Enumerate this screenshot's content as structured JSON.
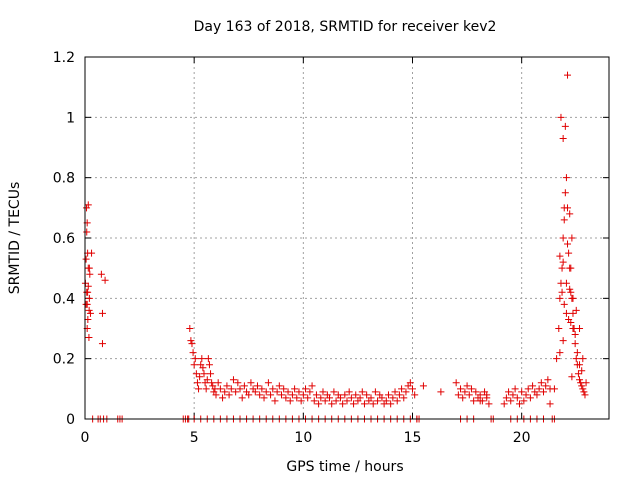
{
  "chart_data": {
    "type": "scatter",
    "title": "Day 163 of 2018, SRMTID for receiver kev2",
    "xlabel": "GPS time / hours",
    "ylabel": "SRMTID / TECUs",
    "xlim": [
      0,
      24
    ],
    "ylim": [
      0,
      1.2
    ],
    "x_ticks": [
      0,
      5,
      10,
      15,
      20
    ],
    "y_ticks": [
      0,
      0.2,
      0.4,
      0.6,
      0.8,
      1,
      1.2
    ],
    "x_tick_labels": [
      "0",
      "5",
      "10",
      "15",
      "20"
    ],
    "y_tick_labels": [
      "0",
      "0.2",
      "0.4",
      "0.6",
      "0.8",
      "1",
      "1.2"
    ],
    "grid": true,
    "marker": "+",
    "series": [
      {
        "name": "kev2",
        "color": "#e00000",
        "x": [
          0.02,
          0.05,
          0.08,
          0.1,
          0.12,
          0.15,
          0.05,
          0.08,
          0.1,
          0.13,
          0.18,
          0.2,
          0.22,
          0.07,
          0.15,
          0.19,
          0.25,
          0.3,
          0.75,
          0.8,
          0.92,
          0.8,
          0.12,
          0.15,
          0.2,
          0.1,
          0.35,
          0.6,
          0.7,
          0.85,
          1.0,
          1.5,
          1.6,
          1.7,
          4.5,
          4.6,
          4.7,
          4.75,
          4.8,
          4.85,
          4.9,
          4.95,
          5.0,
          5.05,
          5.1,
          5.15,
          5.2,
          5.25,
          5.3,
          5.35,
          5.4,
          5.45,
          5.5,
          5.55,
          5.6,
          5.65,
          5.7,
          5.75,
          5.8,
          5.85,
          5.9,
          5.95,
          6.0,
          6.1,
          6.2,
          6.3,
          6.4,
          6.5,
          6.6,
          6.7,
          6.8,
          6.9,
          7.0,
          7.1,
          7.2,
          7.3,
          7.4,
          7.5,
          7.6,
          7.7,
          7.8,
          7.9,
          8.0,
          8.1,
          8.2,
          8.3,
          8.4,
          8.5,
          8.6,
          8.7,
          8.8,
          8.9,
          9.0,
          9.1,
          9.2,
          9.3,
          9.4,
          9.5,
          9.6,
          9.7,
          9.8,
          9.9,
          10.0,
          10.1,
          10.2,
          10.3,
          10.4,
          10.5,
          10.6,
          10.7,
          10.8,
          10.9,
          11.0,
          11.1,
          11.2,
          11.3,
          11.4,
          11.5,
          11.6,
          11.7,
          11.8,
          11.9,
          12.0,
          12.1,
          12.2,
          12.3,
          12.4,
          12.5,
          12.6,
          12.7,
          12.8,
          12.9,
          13.0,
          13.1,
          13.2,
          13.3,
          13.4,
          13.5,
          13.6,
          13.7,
          13.8,
          13.9,
          14.0,
          14.1,
          14.2,
          14.3,
          14.4,
          14.5,
          14.6,
          14.7,
          14.8,
          14.9,
          15.0,
          15.1,
          15.2,
          15.3,
          5.0,
          5.3,
          5.6,
          5.9,
          6.2,
          6.5,
          6.8,
          7.1,
          7.4,
          7.7,
          8.0,
          8.3,
          8.6,
          8.9,
          9.2,
          9.5,
          9.8,
          10.1,
          10.4,
          10.7,
          11.0,
          11.3,
          11.6,
          11.9,
          12.2,
          12.5,
          12.8,
          13.1,
          13.4,
          13.7,
          14.0,
          14.3,
          14.6,
          14.9,
          15.2,
          15.5,
          16.3,
          17.0,
          17.1,
          17.2,
          17.3,
          17.4,
          17.5,
          17.6,
          17.7,
          17.8,
          17.9,
          18.0,
          18.1,
          18.2,
          18.3,
          18.4,
          18.5,
          18.6,
          18.7,
          17.2,
          17.5,
          17.8,
          18.1,
          18.4,
          19.2,
          19.3,
          19.4,
          19.5,
          19.6,
          19.7,
          19.8,
          19.9,
          20.0,
          20.1,
          20.2,
          20.3,
          20.4,
          20.5,
          20.6,
          20.7,
          20.8,
          20.9,
          21.0,
          21.1,
          21.2,
          21.3,
          21.4,
          21.5,
          19.5,
          19.8,
          20.1,
          20.4,
          20.7,
          21.0,
          21.3,
          21.5,
          21.6,
          21.7,
          21.75,
          21.8,
          21.85,
          21.9,
          21.95,
          22.0,
          22.05,
          22.1,
          22.15,
          22.2,
          22.25,
          22.3,
          22.35,
          22.4,
          22.45,
          22.5,
          22.55,
          22.6,
          22.65,
          22.7,
          22.75,
          22.8,
          22.85,
          22.9,
          21.8,
          21.9,
          22.0,
          22.1,
          22.2,
          22.3,
          21.85,
          21.95,
          22.05,
          22.15,
          22.25,
          22.35,
          22.45,
          22.55,
          22.65,
          22.75,
          21.75,
          21.9,
          22.05,
          22.2,
          22.35,
          22.5,
          22.65,
          22.8,
          22.95,
          21.95,
          22.1,
          22.25,
          21.75,
          21.9,
          22.3
        ],
        "y": [
          0.45,
          0.53,
          0.62,
          0.65,
          0.55,
          0.5,
          0.38,
          0.42,
          0.3,
          0.33,
          0.27,
          0.4,
          0.48,
          0.7,
          0.71,
          0.36,
          0.35,
          0.55,
          0.48,
          0.35,
          0.46,
          0.25,
          0.42,
          0.44,
          0.5,
          0.38,
          0.0,
          0.0,
          0.0,
          0.0,
          0.0,
          0.0,
          0.0,
          0.0,
          0.0,
          0.0,
          0.0,
          0.0,
          0.3,
          0.26,
          0.25,
          0.22,
          0.18,
          0.2,
          0.15,
          0.12,
          0.1,
          0.14,
          0.18,
          0.2,
          0.17,
          0.15,
          0.12,
          0.1,
          0.13,
          0.2,
          0.18,
          0.15,
          0.12,
          0.11,
          0.09,
          0.1,
          0.08,
          0.12,
          0.1,
          0.07,
          0.09,
          0.11,
          0.08,
          0.1,
          0.13,
          0.09,
          0.12,
          0.1,
          0.07,
          0.11,
          0.09,
          0.08,
          0.12,
          0.1,
          0.09,
          0.11,
          0.08,
          0.1,
          0.07,
          0.09,
          0.12,
          0.08,
          0.1,
          0.06,
          0.09,
          0.11,
          0.08,
          0.1,
          0.07,
          0.09,
          0.06,
          0.08,
          0.1,
          0.07,
          0.09,
          0.06,
          0.08,
          0.1,
          0.07,
          0.09,
          0.11,
          0.06,
          0.08,
          0.05,
          0.07,
          0.09,
          0.06,
          0.08,
          0.07,
          0.05,
          0.09,
          0.06,
          0.08,
          0.07,
          0.05,
          0.08,
          0.06,
          0.09,
          0.07,
          0.05,
          0.08,
          0.06,
          0.07,
          0.09,
          0.05,
          0.08,
          0.06,
          0.07,
          0.05,
          0.09,
          0.06,
          0.08,
          0.07,
          0.05,
          0.06,
          0.08,
          0.05,
          0.07,
          0.09,
          0.06,
          0.08,
          0.1,
          0.07,
          0.09,
          0.11,
          0.12,
          0.1,
          0.08,
          0.0,
          0.0,
          0.0,
          0.0,
          0.0,
          0.0,
          0.0,
          0.0,
          0.0,
          0.0,
          0.0,
          0.0,
          0.0,
          0.0,
          0.0,
          0.0,
          0.0,
          0.0,
          0.0,
          0.0,
          0.0,
          0.0,
          0.0,
          0.0,
          0.0,
          0.0,
          0.0,
          0.0,
          0.0,
          0.0,
          0.0,
          0.0,
          0.0,
          0.0,
          0.0,
          0.0,
          0.0,
          0.11,
          0.09,
          0.12,
          0.08,
          0.1,
          0.07,
          0.09,
          0.11,
          0.08,
          0.1,
          0.06,
          0.09,
          0.07,
          0.08,
          0.06,
          0.09,
          0.07,
          0.05,
          0.0,
          0.0,
          0.0,
          0.0,
          0.0,
          0.06,
          0.08,
          0.05,
          0.07,
          0.09,
          0.06,
          0.08,
          0.1,
          0.07,
          0.05,
          0.09,
          0.06,
          0.08,
          0.1,
          0.07,
          0.11,
          0.09,
          0.08,
          0.1,
          0.12,
          0.09,
          0.11,
          0.13,
          0.1,
          0.0,
          0.0,
          0.0,
          0.0,
          0.0,
          0.0,
          0.0,
          0.0,
          0.05,
          0.1,
          0.2,
          0.3,
          0.4,
          0.45,
          0.5,
          0.6,
          0.7,
          0.75,
          0.8,
          0.7,
          0.55,
          0.5,
          0.42,
          0.4,
          0.35,
          0.3,
          0.25,
          0.2,
          0.18,
          0.15,
          0.13,
          0.12,
          0.11,
          0.1,
          0.09,
          0.08,
          1.0,
          0.93,
          0.97,
          1.14,
          0.68,
          0.6,
          0.42,
          0.38,
          0.35,
          0.33,
          0.32,
          0.3,
          0.28,
          0.22,
          0.18,
          0.16,
          0.54,
          0.52,
          0.45,
          0.43,
          0.4,
          0.36,
          0.3,
          0.2,
          0.12,
          0.66,
          0.58,
          0.5,
          0.22,
          0.26,
          0.14
        ]
      }
    ]
  }
}
